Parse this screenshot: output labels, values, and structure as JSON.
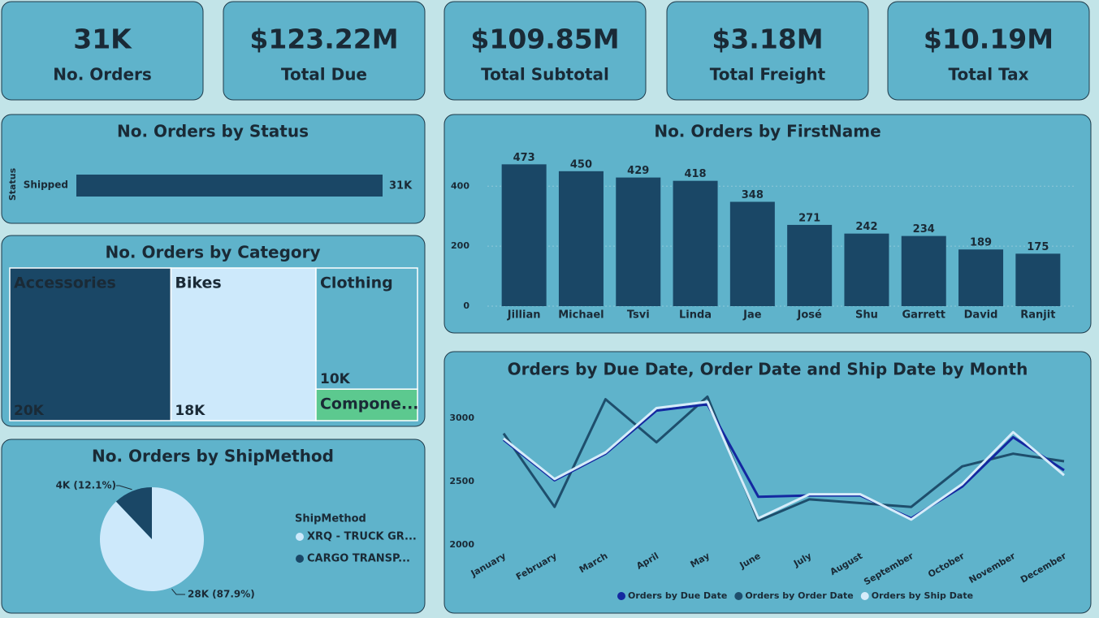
{
  "kpis": [
    {
      "value": "31K",
      "label": "No. Orders"
    },
    {
      "value": "$123.22M",
      "label": "Total Due"
    },
    {
      "value": "$109.85M",
      "label": "Total Subtotal"
    },
    {
      "value": "$3.18M",
      "label": "Total Freight"
    },
    {
      "value": "$10.19M",
      "label": "Total Tax"
    }
  ],
  "chart_data": [
    {
      "type": "bar",
      "orientation": "horizontal",
      "title": "No. Orders by Status",
      "y_label": "Status",
      "categories": [
        "Shipped"
      ],
      "values": [
        31000
      ],
      "value_labels": [
        "31K"
      ],
      "color": "#1a4766"
    },
    {
      "type": "treemap",
      "title": "No. Orders by Category",
      "categories": [
        "Accessories",
        "Bikes",
        "Clothing",
        "Compone..."
      ],
      "values": [
        20000,
        18000,
        10000,
        2600
      ],
      "value_labels": [
        "20K",
        "18K",
        "10K",
        null
      ],
      "colors": [
        "#1a4766",
        "#cde9fb",
        "#5fb3cb",
        "#5cc98f"
      ]
    },
    {
      "type": "pie",
      "title": "No. Orders by ShipMethod",
      "legend_title": "ShipMethod",
      "categories": [
        "XRQ - TRUCK GR...",
        "CARGO TRANSP..."
      ],
      "values": [
        87.9,
        12.1
      ],
      "value_labels": [
        "28K (87.9%)",
        "4K (12.1%)"
      ],
      "colors": [
        "#cde9fb",
        "#1a4766"
      ]
    },
    {
      "type": "bar",
      "title": "No. Orders by FirstName",
      "categories": [
        "Jillian",
        "Michael",
        "Tsvi",
        "Linda",
        "Jae",
        "José",
        "Shu",
        "Garrett",
        "David",
        "Ranjit"
      ],
      "values": [
        473,
        450,
        429,
        418,
        348,
        271,
        242,
        234,
        189,
        175
      ],
      "color": "#1a4766",
      "ylim": [
        0,
        520
      ],
      "yticks": [
        0,
        200,
        400
      ],
      "grid": true
    },
    {
      "type": "line",
      "title": "Orders by Due Date, Order Date and Ship Date by Month",
      "categories": [
        "January",
        "February",
        "March",
        "April",
        "May",
        "June",
        "July",
        "August",
        "September",
        "October",
        "November",
        "December"
      ],
      "series": [
        {
          "name": "Orders by Due Date",
          "color": "#1428a0",
          "values": [
            2830,
            2510,
            2720,
            3060,
            3110,
            2380,
            2390,
            2390,
            2210,
            2460,
            2850,
            2590
          ]
        },
        {
          "name": "Orders by Order Date",
          "color": "#1e4e6c",
          "values": [
            2880,
            2300,
            3150,
            2810,
            3170,
            2190,
            2360,
            2330,
            2300,
            2620,
            2720,
            2660
          ]
        },
        {
          "name": "Orders by Ship Date",
          "color": "#d6ecfa",
          "values": [
            2840,
            2520,
            2730,
            3080,
            3130,
            2210,
            2400,
            2400,
            2200,
            2480,
            2890,
            2550
          ]
        }
      ],
      "ylim": [
        2000,
        3250
      ],
      "yticks": [
        2000,
        2500,
        3000
      ],
      "grid": false
    }
  ]
}
